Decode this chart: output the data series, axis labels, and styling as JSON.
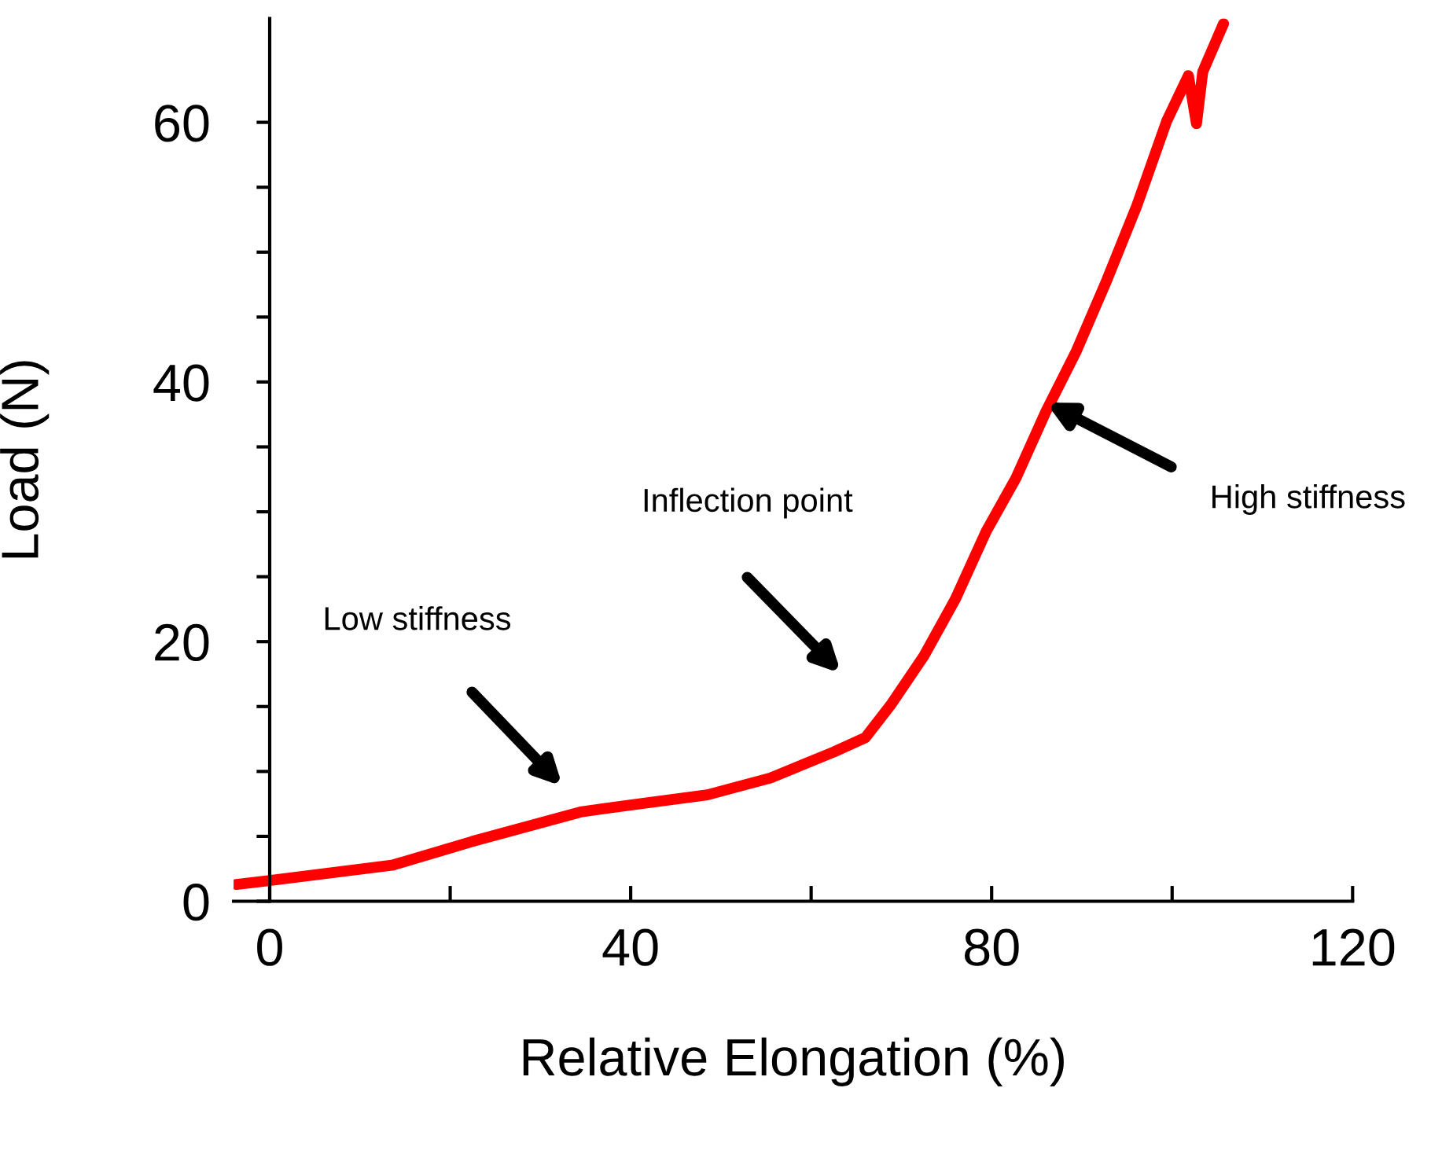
{
  "chart_data": {
    "type": "line",
    "xlabel": "Relative Elongation (%)",
    "ylabel": "Load (N)",
    "xlim": [
      -4,
      120
    ],
    "ylim": [
      0,
      68
    ],
    "xticks": [
      0,
      {
        "value": 20,
        "label": null
      },
      40,
      {
        "value": 60,
        "label": null
      },
      80,
      {
        "value": 100,
        "label": null
      },
      120
    ],
    "yticks": [
      0,
      {
        "value": 5,
        "label": null
      },
      {
        "value": 10,
        "label": null
      },
      {
        "value": 15,
        "label": null
      },
      20,
      {
        "value": 25,
        "label": null
      },
      {
        "value": 30,
        "label": null
      },
      {
        "value": 35,
        "label": null
      },
      40,
      {
        "value": 45,
        "label": null
      },
      {
        "value": 50,
        "label": null
      },
      {
        "value": 55,
        "label": null
      },
      60
    ],
    "grid": false,
    "legend": false,
    "marker": "none",
    "line_style": "solid",
    "series": [
      {
        "color": "#ff0000",
        "x": [
          -3.7,
          0,
          13.7,
          22.4,
          34.6,
          39.8,
          48.5,
          55.5,
          62.5,
          66.0,
          68.9,
          72.5,
          76.0,
          79.4,
          82.7,
          86.0,
          89.4,
          92.8,
          96.1,
          99.4,
          101.8,
          102.7,
          103.4,
          105.7
        ],
        "values": [
          1.3,
          1.6,
          2.8,
          4.6,
          6.9,
          7.4,
          8.2,
          9.5,
          11.5,
          12.6,
          15.2,
          18.9,
          23.3,
          28.5,
          32.6,
          37.7,
          42.4,
          47.9,
          53.6,
          60.1,
          63.6,
          59.9,
          63.9,
          67.6
        ]
      }
    ],
    "annotations": [
      "Low stiffness",
      "Inflection point",
      "High stiffness"
    ]
  }
}
